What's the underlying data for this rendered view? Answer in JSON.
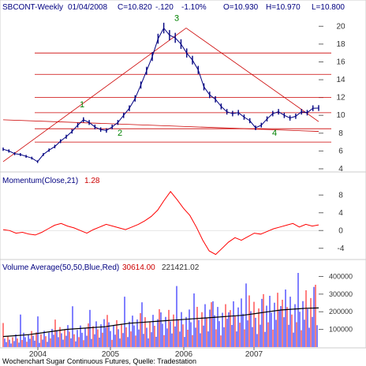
{
  "header": {
    "symbol": "SBCONT-Weekly",
    "date": "01/04/2008",
    "close": "C=10.820",
    "change": "-.120",
    "change_pct": "-1.10%",
    "open": "O=10.930",
    "high": "H=10.970",
    "low": "L=10.800"
  },
  "footer": {
    "source": "Wochenchart Sugar Continuous Futures, Quelle: Tradestation"
  },
  "colors": {
    "background": "#ffffff",
    "panel_border": "#ff0000",
    "price_bars": "#000080",
    "trendline": "#cc0000",
    "horizontal_levels": "#cc0000",
    "momentum_line": "#ff0000",
    "volume_up": "#0000ff",
    "volume_down": "#ff0000",
    "volume_average": "#000000",
    "labels_green": "#008000",
    "axis_text": "#333333"
  },
  "chart_data": [
    {
      "type": "line",
      "panel": "price",
      "title": "SBCONT-Weekly",
      "x_ticks": [
        "2004",
        "2005",
        "2006",
        "2007"
      ],
      "y_ticks": [
        4,
        6,
        8,
        10,
        12,
        14,
        16,
        18,
        20
      ],
      "ylim": [
        4,
        21
      ],
      "grid": false,
      "series": [
        {
          "values": [
            6.2,
            6.0,
            5.7,
            5.6,
            5.4,
            5.2,
            4.8,
            5.6,
            6.1,
            6.5,
            7.1,
            7.6,
            8.2,
            8.9,
            9.5,
            9.2,
            8.7,
            8.4,
            8.3,
            8.7,
            9.2,
            10.0,
            10.8,
            11.9,
            13.4,
            15.0,
            16.6,
            18.6,
            19.8,
            19.0,
            18.7,
            18.0,
            17.0,
            16.2,
            15.1,
            13.2,
            12.3,
            11.8,
            11.0,
            10.4,
            10.2,
            10.3,
            9.8,
            9.4,
            8.6,
            8.9,
            9.6,
            10.2,
            10.4,
            10.0,
            9.7,
            9.9,
            10.4,
            10.3,
            10.8,
            10.82
          ],
          "note": "approximate weekly closes read from the chart"
        }
      ],
      "pattern_labels": [
        "1",
        "2",
        "3",
        "4"
      ],
      "horizontal_levels": [
        7.0,
        8.5,
        10.3,
        12.0,
        14.6,
        17.0
      ],
      "trendlines": [
        {
          "from": [
            0.0,
            4.8
          ],
          "to": [
            0.58,
            19.8
          ]
        },
        {
          "from": [
            0.58,
            19.8
          ],
          "to": [
            1.0,
            9.3
          ]
        },
        {
          "from": [
            0.0,
            9.5
          ],
          "to": [
            1.0,
            8.2
          ]
        }
      ]
    },
    {
      "type": "line",
      "panel": "momentum",
      "title": "Momentum(Close,21)",
      "last_value": "1.28",
      "y_ticks": [
        -4,
        0,
        4,
        8
      ],
      "ylim": [
        -6,
        10
      ],
      "series": [
        {
          "values": [
            0.2,
            0.0,
            -0.6,
            -0.4,
            -0.8,
            -1.0,
            -0.4,
            0.4,
            1.2,
            1.6,
            1.0,
            0.6,
            0.0,
            -0.6,
            0.2,
            0.8,
            1.4,
            1.0,
            0.6,
            0.2,
            0.8,
            1.4,
            2.2,
            3.2,
            4.6,
            6.8,
            8.8,
            7.0,
            5.0,
            3.4,
            0.8,
            -2.2,
            -4.6,
            -5.4,
            -4.0,
            -2.6,
            -1.6,
            -2.2,
            -1.4,
            -0.6,
            -0.8,
            -0.2,
            0.4,
            0.8,
            1.2,
            1.6,
            0.8,
            1.4,
            1.0,
            1.28
          ]
        }
      ]
    },
    {
      "type": "bar",
      "panel": "volume",
      "title": "Volume Average(50,50,Blue,Red)",
      "values_text": [
        "30614.00",
        "221421.02"
      ],
      "y_ticks": [
        100000,
        200000,
        300000,
        400000
      ],
      "y_tick_labels": [
        "100000",
        "200000",
        "300000",
        "400000"
      ],
      "ylim": [
        0,
        420000
      ],
      "average_series": {
        "values": [
          60000,
          65000,
          70000,
          80000,
          90000,
          100000,
          105000,
          110000,
          115000,
          125000,
          135000,
          140000,
          145000,
          150000,
          155000,
          160000,
          165000,
          170000,
          175000,
          180000,
          190000,
          200000,
          210000,
          215000,
          220000,
          221421
        ]
      }
    }
  ]
}
